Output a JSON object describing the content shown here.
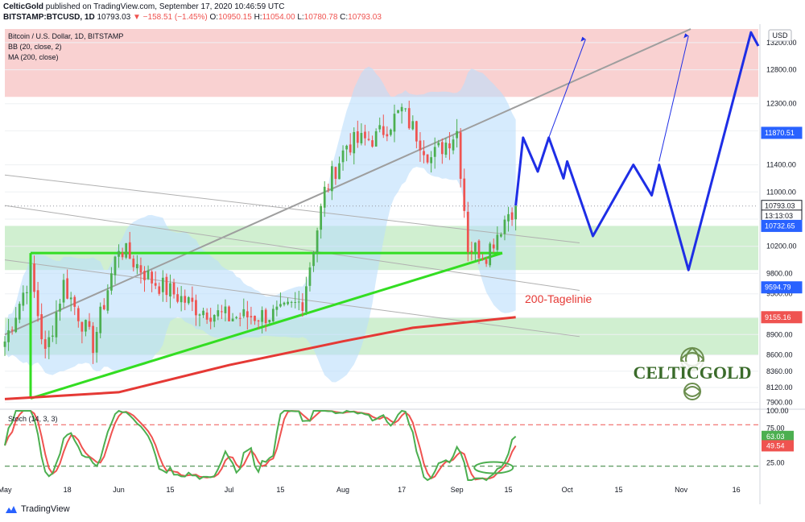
{
  "header": {
    "publisher": "CelticGold",
    "published_text": "published on TradingView.com, September 17, 2020 10:46:59 UTC",
    "symbol": "BITSTAMP:BTCUSD, 1D",
    "last": "10793.03",
    "change_arrow": "▼",
    "change": "−158.51 (−1.45%)",
    "o_label": "O:",
    "o": "10950.15",
    "h_label": "H:",
    "h": "11054.00",
    "l_label": "L:",
    "l": "10780.78",
    "c_label": "C:",
    "c": "10793.03"
  },
  "legend": {
    "title": "Bitcoin / U.S. Dollar, 1D, BITSTAMP",
    "bb": "BB (20, close, 2)",
    "ma": "MA (200, close)"
  },
  "currency": "USD",
  "annotation_ma": "200-Tagelinie",
  "brand": "CELTICGOLD",
  "footer": "TradingView",
  "price_axis": {
    "ticks": [
      "13200.00",
      "12800.00",
      "12300.00",
      "11870.51",
      "11400.00",
      "11000.00",
      "10793.03",
      "13:13:03",
      "10732.65",
      "10200.00",
      "9800.00",
      "9594.79",
      "9500.00",
      "9155.16",
      "8900.00",
      "8600.00",
      "8360.00",
      "8120.00",
      "7900.00"
    ],
    "badges": [
      {
        "text": "11870.51",
        "color": "#2962ff"
      },
      {
        "text": "10793.03",
        "color": "#ffffff",
        "border": "#131722"
      },
      {
        "text": "13:13:03",
        "color": "#ffffff",
        "border": "#131722"
      },
      {
        "text": "10732.65",
        "color": "#2962ff"
      },
      {
        "text": "9594.79",
        "color": "#2962ff"
      },
      {
        "text": "9155.16",
        "color": "#ef5350"
      }
    ]
  },
  "stoch": {
    "label": "Stoch (14, 3, 3)",
    "ticks": [
      "100.00",
      "75.00",
      "25.00"
    ],
    "k_last": "63.03",
    "d_last": "49.54",
    "k_color": "#4caf50",
    "d_color": "#ef5350",
    "overbought": 80,
    "oversold": 20
  },
  "time_axis": [
    "May",
    "18",
    "Jun",
    "15",
    "Jul",
    "15",
    "Aug",
    "17",
    "Sep",
    "15",
    "Oct",
    "15",
    "Nov",
    "16"
  ],
  "colors": {
    "up": "#4caf50",
    "down": "#ef5350",
    "bb_fill": "#bbdefb",
    "resistance_zone": "#f8c9c9",
    "support_zone": "#c8ecc8",
    "ma200": "#e53935",
    "projection": "#1e2ee6",
    "triangle": "#33dd22"
  },
  "chart_data": {
    "type": "candlestick",
    "title": "Bitcoin / U.S. Dollar, 1D, BITSTAMP",
    "ylim": [
      7800,
      13400
    ],
    "x_range": [
      "2020-05-01",
      "2020-11-22"
    ],
    "last_close": 10793.03,
    "ma200_last": 9155.16,
    "zones": [
      {
        "name": "resistance",
        "from": 12400,
        "to": 13400
      },
      {
        "name": "support",
        "from": 9850,
        "to": 10500
      },
      {
        "name": "support",
        "from": 8600,
        "to": 9150
      }
    ],
    "price_path": [
      [
        "2020-05-01",
        8800
      ],
      [
        "2020-05-08",
        9800
      ],
      [
        "2020-05-12",
        8600
      ],
      [
        "2020-05-17",
        9650
      ],
      [
        "2020-05-25",
        8750
      ],
      [
        "2020-06-01",
        10200
      ],
      [
        "2020-06-10",
        9700
      ],
      [
        "2020-06-22",
        9300
      ],
      [
        "2020-07-01",
        9150
      ],
      [
        "2020-07-15",
        9200
      ],
      [
        "2020-07-21",
        9400
      ],
      [
        "2020-07-27",
        11000
      ],
      [
        "2020-08-02",
        11700
      ],
      [
        "2020-08-10",
        11800
      ],
      [
        "2020-08-17",
        12200
      ],
      [
        "2020-08-25",
        11500
      ],
      [
        "2020-09-01",
        11900
      ],
      [
        "2020-09-04",
        10200
      ],
      [
        "2020-09-09",
        10100
      ],
      [
        "2020-09-15",
        10700
      ],
      [
        "2020-09-17",
        10793
      ]
    ],
    "ma200": [
      [
        "2020-05-01",
        7950
      ],
      [
        "2020-06-01",
        8050
      ],
      [
        "2020-07-01",
        8450
      ],
      [
        "2020-08-01",
        8800
      ],
      [
        "2020-08-20",
        9000
      ],
      [
        "2020-09-17",
        9155
      ]
    ],
    "projection": [
      [
        "2020-09-17",
        10800
      ],
      [
        "2020-09-19",
        11800
      ],
      [
        "2020-09-23",
        11300
      ],
      [
        "2020-09-26",
        11800
      ],
      [
        "2020-09-30",
        11200
      ],
      [
        "2020-10-01",
        11450
      ],
      [
        "2020-10-08",
        10350
      ],
      [
        "2020-10-19",
        11400
      ],
      [
        "2020-10-24",
        10950
      ],
      [
        "2020-10-26",
        11400
      ],
      [
        "2020-11-03",
        9850
      ],
      [
        "2020-11-20",
        13350
      ],
      [
        "2020-11-22",
        13150
      ]
    ]
  }
}
